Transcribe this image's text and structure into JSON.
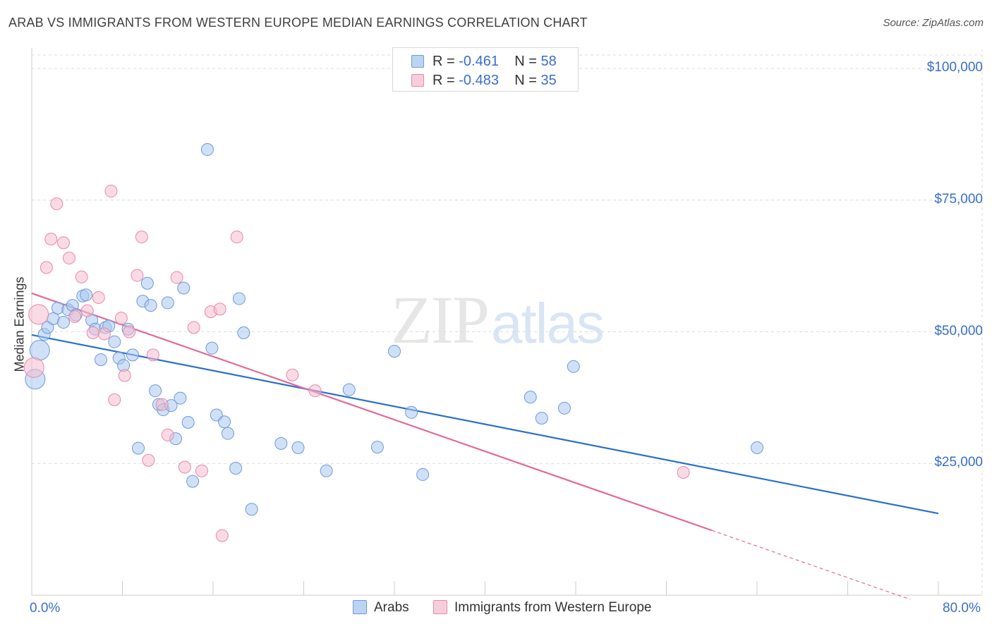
{
  "title": "ARAB VS IMMIGRANTS FROM WESTERN EUROPE MEDIAN EARNINGS CORRELATION CHART",
  "source": "Source: ZipAtlas.com",
  "watermark": {
    "zip": "ZIP",
    "atlas": "atlas"
  },
  "legend_top": [
    {
      "r_label": "R =",
      "r_value": "-0.461",
      "n_label": "N =",
      "n_value": "58"
    },
    {
      "r_label": "R =",
      "r_value": "-0.483",
      "n_label": "N =",
      "n_value": "35"
    }
  ],
  "bottom_legend": [
    "Arabs",
    "Immigrants from Western Europe"
  ],
  "colors": {
    "arabs_fill": "#a9c8f0",
    "arabs_stroke": "#6d9ad8",
    "arabs_line": "#2a6fcc",
    "imm_fill": "#f6bcd0",
    "imm_stroke": "#e58aa8",
    "imm_line": "#e26a97",
    "axis_label": "#3a6fc7",
    "grid": "#dcdcdc"
  },
  "chart_data": {
    "type": "scatter",
    "title": "ARAB VS IMMIGRANTS FROM WESTERN EUROPE MEDIAN EARNINGS CORRELATION CHART",
    "xlabel": "",
    "ylabel": "Median Earnings",
    "xlim": [
      0,
      80
    ],
    "ylim": [
      0,
      100000
    ],
    "x_tick_labels": [
      "0.0%",
      "80.0%"
    ],
    "y_tick_labels": [
      "$100,000",
      "$75,000",
      "$50,000",
      "$25,000"
    ],
    "y_ticks": [
      100000,
      75000,
      50000,
      25000
    ],
    "grid": true,
    "legend_position": "top-center",
    "series": [
      {
        "name": "Arabs",
        "points": [
          [
            0.3,
            41000
          ],
          [
            0.7,
            46500
          ],
          [
            1.1,
            49500
          ],
          [
            1.4,
            50800
          ],
          [
            1.9,
            52500
          ],
          [
            2.3,
            54500
          ],
          [
            2.8,
            51800
          ],
          [
            3.2,
            54200
          ],
          [
            3.6,
            55000
          ],
          [
            3.9,
            53200
          ],
          [
            4.5,
            56800
          ],
          [
            4.8,
            57000
          ],
          [
            5.3,
            52200
          ],
          [
            5.6,
            50500
          ],
          [
            6.1,
            44700
          ],
          [
            6.5,
            50800
          ],
          [
            6.8,
            51100
          ],
          [
            7.3,
            48100
          ],
          [
            7.7,
            45000
          ],
          [
            8.1,
            43600
          ],
          [
            8.5,
            50500
          ],
          [
            8.9,
            45600
          ],
          [
            9.4,
            27900
          ],
          [
            9.8,
            55800
          ],
          [
            10.2,
            59200
          ],
          [
            10.5,
            55000
          ],
          [
            10.9,
            38800
          ],
          [
            11.2,
            36200
          ],
          [
            11.6,
            35200
          ],
          [
            12.0,
            55500
          ],
          [
            12.3,
            36000
          ],
          [
            12.7,
            29700
          ],
          [
            13.1,
            37400
          ],
          [
            13.4,
            58300
          ],
          [
            13.8,
            32800
          ],
          [
            14.2,
            21600
          ],
          [
            15.5,
            84600
          ],
          [
            15.9,
            46900
          ],
          [
            16.3,
            34200
          ],
          [
            17.0,
            32900
          ],
          [
            17.3,
            30700
          ],
          [
            18.0,
            24100
          ],
          [
            18.7,
            49800
          ],
          [
            19.4,
            16300
          ],
          [
            18.3,
            56300
          ],
          [
            22.0,
            28800
          ],
          [
            23.5,
            28000
          ],
          [
            26.0,
            23600
          ],
          [
            28.0,
            39000
          ],
          [
            30.5,
            28100
          ],
          [
            32.0,
            46300
          ],
          [
            33.5,
            34700
          ],
          [
            34.5,
            22900
          ],
          [
            44.0,
            37600
          ],
          [
            45.0,
            33600
          ],
          [
            47.0,
            35500
          ],
          [
            47.8,
            43400
          ],
          [
            64.0,
            28000
          ]
        ]
      },
      {
        "name": "Immigrants from Western Europe",
        "points": [
          [
            0.2,
            43200
          ],
          [
            0.6,
            53300
          ],
          [
            1.3,
            62200
          ],
          [
            1.7,
            67600
          ],
          [
            2.2,
            74300
          ],
          [
            2.8,
            66900
          ],
          [
            3.3,
            64000
          ],
          [
            3.8,
            52900
          ],
          [
            4.4,
            60400
          ],
          [
            4.9,
            54000
          ],
          [
            5.4,
            49800
          ],
          [
            5.9,
            56500
          ],
          [
            6.4,
            49600
          ],
          [
            7.0,
            76700
          ],
          [
            7.3,
            37100
          ],
          [
            7.9,
            52600
          ],
          [
            8.2,
            41700
          ],
          [
            8.6,
            50000
          ],
          [
            9.3,
            60700
          ],
          [
            9.7,
            68000
          ],
          [
            10.3,
            25600
          ],
          [
            10.7,
            45600
          ],
          [
            11.5,
            36200
          ],
          [
            12.0,
            30400
          ],
          [
            12.8,
            60300
          ],
          [
            13.5,
            24300
          ],
          [
            14.3,
            50800
          ],
          [
            15.0,
            23600
          ],
          [
            15.8,
            53800
          ],
          [
            16.6,
            54300
          ],
          [
            16.8,
            11300
          ],
          [
            18.1,
            68000
          ],
          [
            23.0,
            41800
          ],
          [
            25.0,
            38800
          ],
          [
            57.5,
            23300
          ]
        ]
      }
    ],
    "trend_lines": [
      {
        "name": "Arabs",
        "x": [
          0,
          80
        ],
        "y": [
          49400,
          15500
        ]
      },
      {
        "name": "Immigrants from Western Europe",
        "x": [
          0,
          60
        ],
        "y": [
          57300,
          12300
        ]
      },
      {
        "name": "Immigrants from Western Europe (extrapolated)",
        "x": [
          60,
          77.5
        ],
        "y": [
          12300,
          -800
        ]
      }
    ]
  }
}
